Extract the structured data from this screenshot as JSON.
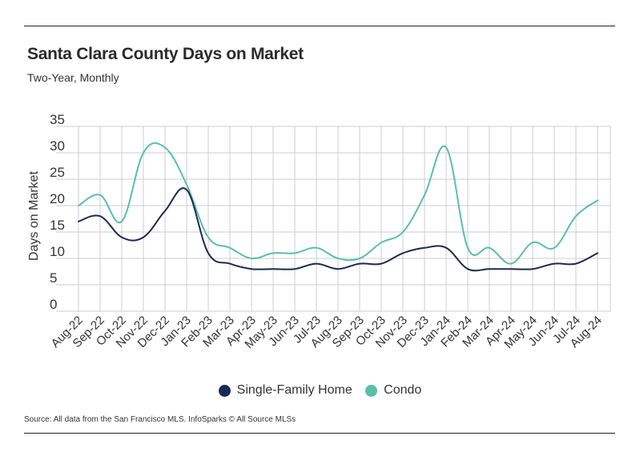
{
  "colors": {
    "single_family": "#1b2a55",
    "condo": "#5bbfa8",
    "grid": "#cccccc",
    "text": "#333333"
  },
  "source": "Source:  All data from the San Francisco MLS. InfoSparks © All Source MLSs",
  "chart_data": {
    "type": "line",
    "title": "Santa Clara County Days on Market",
    "subtitle": "Two-Year, Monthly",
    "xlabel": "",
    "ylabel": "Days on Market",
    "ylim": [
      0,
      35
    ],
    "yticks": [
      0,
      5,
      10,
      15,
      20,
      25,
      30,
      35
    ],
    "grid": true,
    "legend_position": "bottom-center",
    "categories": [
      "Aug-22",
      "Sep-22",
      "Oct-22",
      "Nov-22",
      "Dec-22",
      "Jan-23",
      "Feb-23",
      "Mar-23",
      "Apr-23",
      "May-23",
      "Jun-23",
      "Jul-23",
      "Aug-23",
      "Sep-23",
      "Oct-23",
      "Nov-23",
      "Dec-23",
      "Jan-24",
      "Feb-24",
      "Mar-24",
      "Apr-24",
      "May-24",
      "Jun-24",
      "Jul-24",
      "Aug-24"
    ],
    "series": [
      {
        "name": "Single-Family Home",
        "values": [
          17,
          18,
          14,
          14,
          19,
          23,
          11,
          9,
          8,
          8,
          8,
          9,
          8,
          9,
          9,
          11,
          12,
          12,
          8,
          8,
          8,
          8,
          9,
          9,
          11
        ]
      },
      {
        "name": "Condo",
        "values": [
          20,
          22,
          17,
          30,
          31,
          24,
          14,
          12,
          10,
          11,
          11,
          12,
          10,
          10,
          13,
          15,
          22,
          31,
          12,
          12,
          9,
          13,
          12,
          18,
          21
        ]
      }
    ]
  }
}
